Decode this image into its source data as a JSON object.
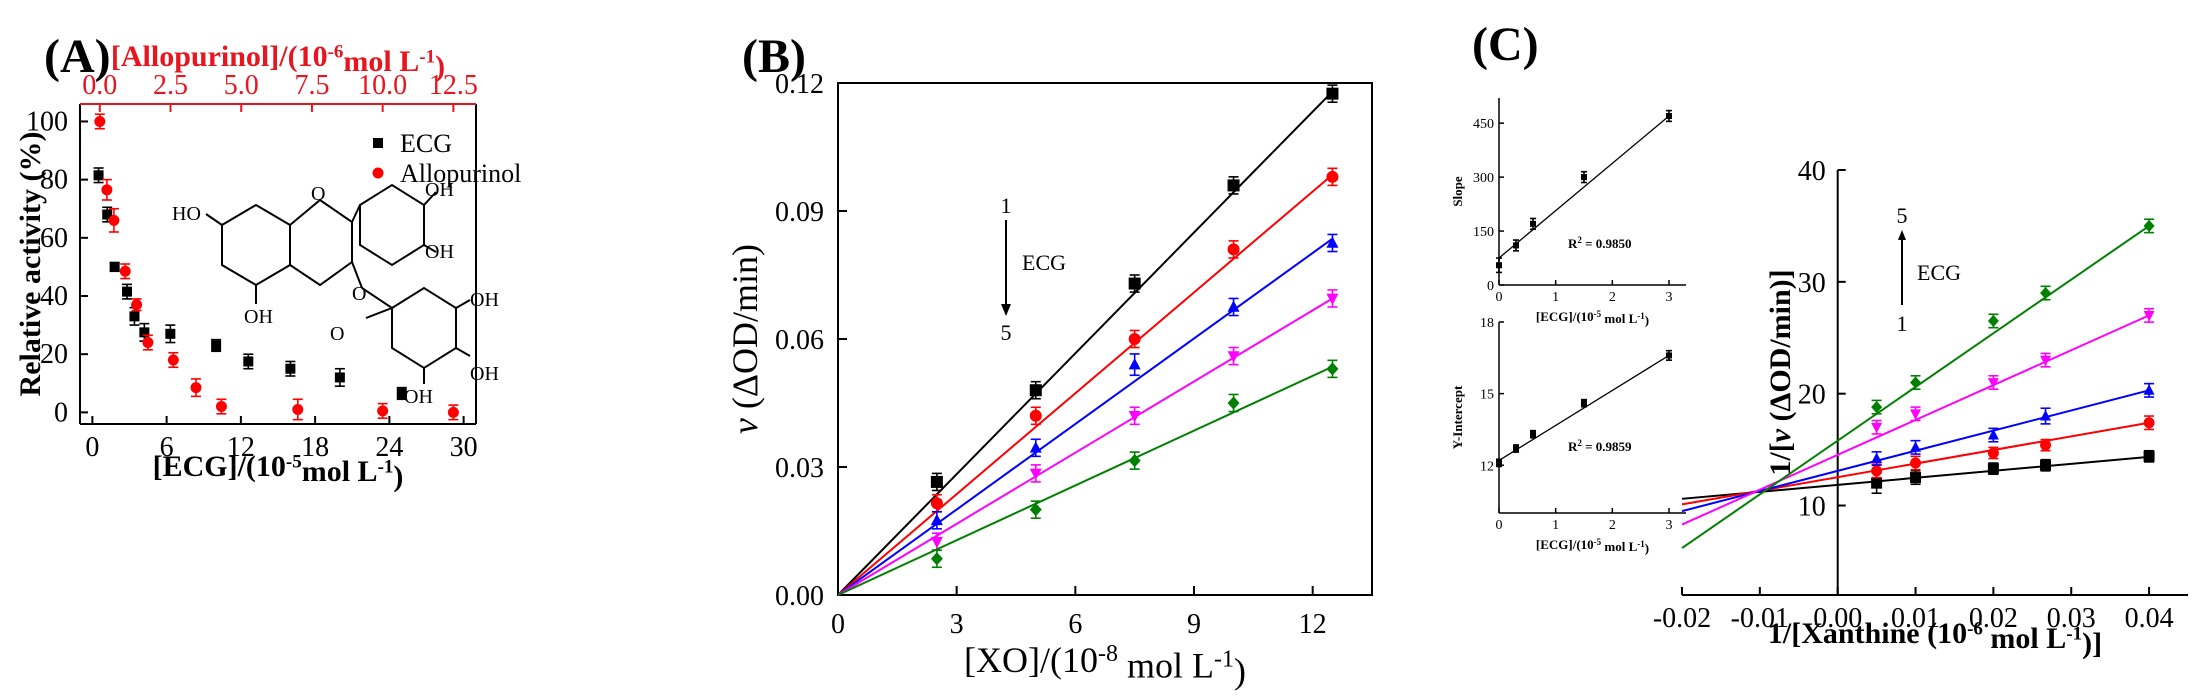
{
  "colors": {
    "black": "#000000",
    "red": "#ff0000",
    "blue": "#0000ff",
    "magenta": "#ff00ff",
    "green": "#008000",
    "allopurinol_axis": "#e8141e"
  },
  "panel_labels": [
    "(A)",
    "(B)",
    "(C)"
  ],
  "chart_data": [
    {
      "id": "A",
      "type": "scatter",
      "xlabel": "[ECG]/(10-5mol L-1)",
      "xlabel_parts": {
        "base": "[ECG]/(10",
        "sup1": "-5",
        "mid": "mol L",
        "sup2": "-1",
        "end": ")"
      },
      "ylabel": "Relative activity (%)",
      "x2label": "[Allopurinol]/(10-6mol L-1)",
      "x2label_parts": {
        "base": "[Allopurinol]/(10",
        "sup1": "-6",
        "mid": "mol L",
        "sup2": "-1",
        "end": ")"
      },
      "xlim": [
        -1,
        31
      ],
      "x2lim": [
        -0.7,
        13.3
      ],
      "ylim": [
        -4,
        106
      ],
      "xticks": [
        0,
        6,
        12,
        18,
        24,
        30
      ],
      "x2ticks": [
        "0.0",
        "2.5",
        "5.0",
        "7.5",
        "10.0",
        "12.5"
      ],
      "yticks": [
        0,
        20,
        40,
        60,
        80,
        100
      ],
      "legend": [
        "ECG",
        "Allopurinol"
      ],
      "legend_position": "top-right",
      "structure_labels": [
        "OH",
        "OH",
        "HO",
        "O",
        "O",
        "OH",
        "O",
        "OH",
        "OH",
        "OH"
      ],
      "series": [
        {
          "name": "ECG",
          "axis": "bottom",
          "marker": "square",
          "color": "#000000",
          "x": [
            0.5,
            1.2,
            1.8,
            2.8,
            3.4,
            4.2,
            6.3,
            10.0,
            12.6,
            16.0,
            20.0,
            25.0
          ],
          "y": [
            81.5,
            68.0,
            50.0,
            41.5,
            33.0,
            27.5,
            27.0,
            23.0,
            17.5,
            15.0,
            12.0,
            6.5
          ],
          "err": [
            2.5,
            2.5,
            1.5,
            2.5,
            3.0,
            3.0,
            3.0,
            2.0,
            2.5,
            2.5,
            3.0,
            2.0
          ]
        },
        {
          "name": "Allopurinol",
          "axis": "top",
          "marker": "circle",
          "color": "#ff0000",
          "x": [
            0.0,
            0.25,
            0.5,
            0.9,
            1.3,
            1.7,
            2.6,
            3.4,
            4.3,
            7.0,
            10.0,
            12.5
          ],
          "y": [
            100.0,
            76.5,
            66.0,
            48.5,
            37.0,
            24.0,
            18.0,
            8.5,
            2.0,
            1.0,
            0.5,
            0.0
          ],
          "err": [
            2.5,
            3.5,
            4.0,
            2.5,
            2.0,
            2.5,
            2.5,
            3.0,
            2.5,
            3.5,
            2.5,
            2.5
          ]
        }
      ]
    },
    {
      "id": "B",
      "type": "line",
      "xlabel": "[XO]/(10-8 mol L-1)",
      "xlabel_parts": {
        "base": "[XO]/(10",
        "sup1": "-8",
        "mid": " mol L",
        "sup2": "-1",
        "end": ")"
      },
      "ylabel": "v (ΔOD/min)",
      "ylabel_parts": {
        "var": "v",
        "rest": " (ΔOD/min)"
      },
      "xlim": [
        0,
        13.5
      ],
      "ylim": [
        0,
        0.12
      ],
      "xticks": [
        0,
        3,
        6,
        9,
        12
      ],
      "yticks": [
        "0.00",
        "0.03",
        "0.06",
        "0.09",
        "0.12"
      ],
      "annotation": {
        "from": "1",
        "to": "5",
        "label": "ECG"
      },
      "series": [
        {
          "marker": "square",
          "color": "#000000",
          "x": [
            2.5,
            5,
            7.5,
            10,
            12.5
          ],
          "y": [
            0.0265,
            0.048,
            0.073,
            0.096,
            0.1175
          ],
          "err": [
            0.002,
            0.002,
            0.002,
            0.002,
            0.002
          ],
          "slope": 0.00944
        },
        {
          "marker": "circle",
          "color": "#ff0000",
          "x": [
            2.5,
            5,
            7.5,
            10,
            12.5
          ],
          "y": [
            0.0215,
            0.042,
            0.06,
            0.081,
            0.098
          ],
          "err": [
            0.002,
            0.002,
            0.002,
            0.002,
            0.002
          ],
          "slope": 0.00788
        },
        {
          "marker": "triangle",
          "color": "#0000ff",
          "x": [
            2.5,
            5,
            7.5,
            10,
            12.5
          ],
          "y": [
            0.0175,
            0.0345,
            0.054,
            0.0675,
            0.0825
          ],
          "err": [
            0.002,
            0.002,
            0.0025,
            0.002,
            0.002
          ],
          "slope": 0.00668
        },
        {
          "marker": "triangle-down",
          "color": "#ff00ff",
          "x": [
            2.5,
            5,
            7.5,
            10,
            12.5
          ],
          "y": [
            0.0125,
            0.0285,
            0.042,
            0.056,
            0.0695
          ],
          "err": [
            0.002,
            0.002,
            0.002,
            0.002,
            0.002
          ],
          "slope": 0.00556
        },
        {
          "marker": "diamond",
          "color": "#008000",
          "x": [
            2.5,
            5,
            7.5,
            10,
            12.5
          ],
          "y": [
            0.0085,
            0.02,
            0.0315,
            0.045,
            0.053
          ],
          "err": [
            0.002,
            0.002,
            0.002,
            0.002,
            0.002
          ],
          "slope": 0.00428
        }
      ]
    },
    {
      "id": "C-inset-slope",
      "type": "line",
      "xlabel": "[ECG]/(10-5 mol L-1)",
      "xlabel_parts": {
        "base": "[ECG]/(10",
        "sup1": "-5",
        "mid": " mol L",
        "sup2": "-1",
        "end": ")"
      },
      "ylabel": "Slope",
      "xlim": [
        0,
        3.3
      ],
      "ylim": [
        0,
        520
      ],
      "xticks": [
        0,
        1,
        2,
        3
      ],
      "yticks": [
        0,
        150,
        300,
        450
      ],
      "annotation": "R2 = 0.9850",
      "annotation_parts": {
        "base": "R",
        "sup": "2",
        "rest": " = 0.9850"
      },
      "series": [
        {
          "marker": "square",
          "color": "#000000",
          "x": [
            0.0,
            0.3,
            0.6,
            1.5,
            3.0
          ],
          "y": [
            55,
            110,
            170,
            300,
            470
          ],
          "err": [
            20,
            15,
            15,
            15,
            15
          ]
        }
      ],
      "fit": {
        "x": [
          0,
          3.0
        ],
        "y": [
          75,
          470
        ]
      }
    },
    {
      "id": "C-inset-intercept",
      "type": "line",
      "xlabel": "[ECG]/(10-5 mol L-1)",
      "xlabel_parts": {
        "base": "[ECG]/(10",
        "sup1": "-5",
        "mid": " mol L",
        "sup2": "-1",
        "end": ")"
      },
      "ylabel": "Y-Intercept",
      "xlim": [
        0,
        3.3
      ],
      "ylim": [
        10,
        18
      ],
      "xticks": [
        0,
        1,
        2,
        3
      ],
      "yticks": [
        12,
        15,
        18
      ],
      "annotation": "R2 = 0.9859",
      "annotation_parts": {
        "base": "R",
        "sup": "2",
        "rest": " = 0.9859"
      },
      "series": [
        {
          "marker": "square",
          "color": "#000000",
          "x": [
            0.0,
            0.3,
            0.6,
            1.5,
            3.0
          ],
          "y": [
            12.1,
            12.7,
            13.3,
            14.6,
            16.6
          ],
          "err": [
            0.15,
            0.15,
            0.15,
            0.15,
            0.2
          ]
        }
      ],
      "fit": {
        "x": [
          0,
          3.0
        ],
        "y": [
          12.2,
          16.6
        ]
      }
    },
    {
      "id": "C-main",
      "type": "line",
      "xlabel": "1/[Xanthine (10-6 mol L-1)]",
      "xlabel_parts": {
        "base": "1/[Xanthine (10",
        "sup1": "-6",
        "mid": " mol L",
        "sup2": "-1",
        "end": ")]"
      },
      "ylabel": "1/[v (ΔOD/min)]",
      "ylabel_parts": {
        "pre": "1/[",
        "var": "v",
        "rest": " (ΔOD/min)]"
      },
      "xlim": [
        -0.02,
        0.045
      ],
      "ylim": [
        2,
        40
      ],
      "xticks": [
        "-0.02",
        "-0.01",
        "0.00",
        "0.01",
        "0.02",
        "0.03",
        "0.04"
      ],
      "yticks": [
        10,
        20,
        30,
        40
      ],
      "annotation": {
        "from": "1",
        "to": "5",
        "label": "ECG"
      },
      "series": [
        {
          "marker": "square",
          "color": "#000000",
          "x": [
            0.005,
            0.01,
            0.02,
            0.0267,
            0.04
          ],
          "y": [
            12.0,
            12.5,
            13.3,
            13.6,
            14.4
          ],
          "err": [
            0.9,
            0.6,
            0.5,
            0.5,
            0.5
          ],
          "fit": {
            "x": [
              -0.02,
              0.04
            ],
            "y": [
              10.6,
              14.35
            ]
          }
        },
        {
          "marker": "circle",
          "color": "#ff0000",
          "x": [
            0.005,
            0.01,
            0.02,
            0.0267,
            0.04
          ],
          "y": [
            13.1,
            13.8,
            14.7,
            15.4,
            17.4
          ],
          "err": [
            0.6,
            0.6,
            0.5,
            0.5,
            0.6
          ],
          "fit": {
            "x": [
              -0.02,
              0.04
            ],
            "y": [
              10.1,
              17.4
            ]
          }
        },
        {
          "marker": "triangle",
          "color": "#0000ff",
          "x": [
            0.005,
            0.01,
            0.02,
            0.0267,
            0.04
          ],
          "y": [
            14.2,
            15.2,
            16.3,
            18.0,
            20.3
          ],
          "err": [
            0.6,
            0.6,
            0.6,
            0.7,
            0.6
          ],
          "fit": {
            "x": [
              -0.02,
              0.04
            ],
            "y": [
              9.5,
              20.3
            ]
          }
        },
        {
          "marker": "triangle-down",
          "color": "#ff00ff",
          "x": [
            0.005,
            0.01,
            0.02,
            0.0267,
            0.04
          ],
          "y": [
            17.0,
            18.2,
            21.0,
            23.0,
            27.0
          ],
          "err": [
            0.6,
            0.6,
            0.6,
            0.6,
            0.6
          ],
          "fit": {
            "x": [
              -0.02,
              0.04
            ],
            "y": [
              8.3,
              27.0
            ]
          }
        },
        {
          "marker": "diamond",
          "color": "#008000",
          "x": [
            0.005,
            0.01,
            0.02,
            0.0267,
            0.04
          ],
          "y": [
            18.8,
            21.0,
            26.5,
            29.0,
            35.0
          ],
          "err": [
            0.6,
            0.6,
            0.6,
            0.6,
            0.6
          ],
          "fit": {
            "x": [
              -0.02,
              0.04
            ],
            "y": [
              6.2,
              35.0
            ]
          }
        }
      ]
    }
  ]
}
